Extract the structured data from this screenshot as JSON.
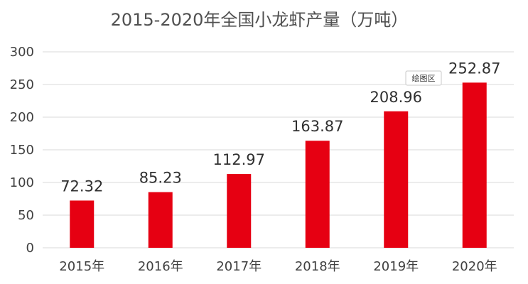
{
  "chart_data": {
    "type": "bar",
    "title": "2015-2020年全国小龙虾产量（万吨）",
    "categories": [
      "2015年",
      "2016年",
      "2017年",
      "2018年",
      "2019年",
      "2020年"
    ],
    "values": [
      72.32,
      85.23,
      112.97,
      163.87,
      208.96,
      252.87
    ],
    "data_labels": [
      "72.32",
      "85.23",
      "112.97",
      "163.87",
      "208.96",
      "252.87"
    ],
    "xlabel": "",
    "ylabel": "",
    "ylim": [
      0,
      300
    ],
    "yticks": [
      0,
      50,
      100,
      150,
      200,
      250,
      300
    ],
    "grid": true,
    "legend": "none",
    "bar_color": "#e60012"
  },
  "tooltip": {
    "label": "绘图区"
  }
}
